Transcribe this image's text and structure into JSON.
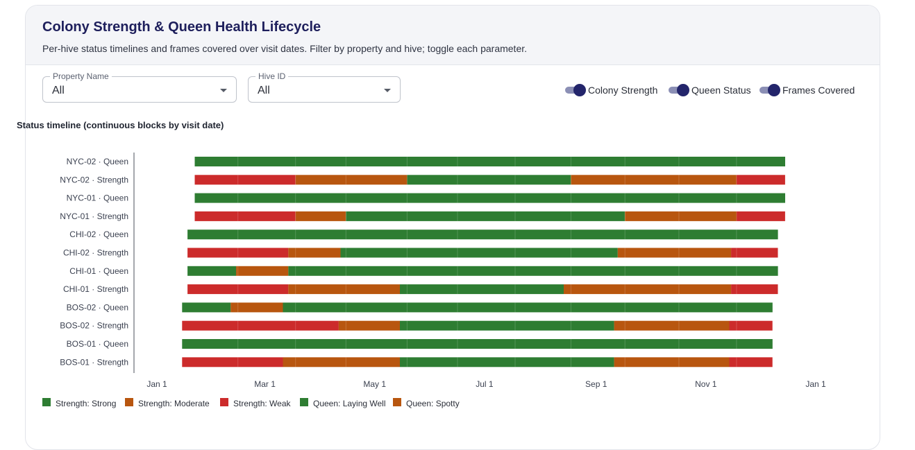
{
  "header": {
    "title": "Colony Strength & Queen Health Lifecycle",
    "subtitle": "Per-hive status timelines and frames covered over visit dates. Filter by property and hive; toggle each parameter."
  },
  "filters": {
    "property": {
      "label": "Property Name",
      "value": "All"
    },
    "hive": {
      "label": "Hive ID",
      "value": "All"
    }
  },
  "toggles": [
    {
      "label": "Colony Strength",
      "on": true
    },
    {
      "label": "Queen Status",
      "on": true
    },
    {
      "label": "Frames Covered",
      "on": true
    }
  ],
  "section_title": "Status timeline (continuous blocks by visit date)",
  "colors": {
    "strong": "#2e7d32",
    "moderate": "#b8560f",
    "weak": "#cc2b2b",
    "accent": "#1e1f5c"
  },
  "chart_data": {
    "type": "timeline",
    "x_ticks": [
      "Jan 1",
      "Mar 1",
      "May 1",
      "Jul 1",
      "Sep 1",
      "Nov 1",
      "Jan 1"
    ],
    "legend": [
      {
        "label": "Strength: Strong",
        "color": "#2e7d32"
      },
      {
        "label": "Strength: Moderate",
        "color": "#b8560f"
      },
      {
        "label": "Strength: Weak",
        "color": "#cc2b2b"
      },
      {
        "label": "Queen: Laying Well",
        "color": "#2e7d32"
      },
      {
        "label": "Queen: Spotty",
        "color": "#b8560f"
      }
    ],
    "rows": [
      {
        "label": "NYC-02 · Queen",
        "segments": [
          {
            "start": "2024-01-22",
            "end": "2024-12-15",
            "status": "strong"
          }
        ]
      },
      {
        "label": "NYC-02 · Strength",
        "segments": [
          {
            "start": "2024-01-22",
            "end": "2024-03-18",
            "status": "weak"
          },
          {
            "start": "2024-03-18",
            "end": "2024-05-19",
            "status": "moderate"
          },
          {
            "start": "2024-05-19",
            "end": "2024-08-18",
            "status": "strong"
          },
          {
            "start": "2024-08-18",
            "end": "2024-11-18",
            "status": "moderate"
          },
          {
            "start": "2024-11-18",
            "end": "2024-12-15",
            "status": "weak"
          }
        ]
      },
      {
        "label": "NYC-01 · Queen",
        "segments": [
          {
            "start": "2024-01-22",
            "end": "2024-12-15",
            "status": "strong"
          }
        ]
      },
      {
        "label": "NYC-01 · Strength",
        "segments": [
          {
            "start": "2024-01-22",
            "end": "2024-03-18",
            "status": "weak"
          },
          {
            "start": "2024-03-18",
            "end": "2024-04-15",
            "status": "moderate"
          },
          {
            "start": "2024-04-15",
            "end": "2024-09-17",
            "status": "strong"
          },
          {
            "start": "2024-09-17",
            "end": "2024-11-18",
            "status": "moderate"
          },
          {
            "start": "2024-11-18",
            "end": "2024-12-15",
            "status": "weak"
          }
        ]
      },
      {
        "label": "CHI-02 · Queen",
        "segments": [
          {
            "start": "2024-01-18",
            "end": "2024-12-11",
            "status": "strong"
          }
        ]
      },
      {
        "label": "CHI-02 · Strength",
        "segments": [
          {
            "start": "2024-01-18",
            "end": "2024-03-14",
            "status": "weak"
          },
          {
            "start": "2024-03-14",
            "end": "2024-04-12",
            "status": "moderate"
          },
          {
            "start": "2024-04-12",
            "end": "2024-09-13",
            "status": "strong"
          },
          {
            "start": "2024-09-13",
            "end": "2024-11-15",
            "status": "moderate"
          },
          {
            "start": "2024-11-15",
            "end": "2024-12-11",
            "status": "weak"
          }
        ]
      },
      {
        "label": "CHI-01 · Queen",
        "segments": [
          {
            "start": "2024-01-18",
            "end": "2024-02-14",
            "status": "strong"
          },
          {
            "start": "2024-02-14",
            "end": "2024-03-14",
            "status": "moderate"
          },
          {
            "start": "2024-03-14",
            "end": "2024-12-11",
            "status": "strong"
          }
        ]
      },
      {
        "label": "CHI-01 · Strength",
        "segments": [
          {
            "start": "2024-01-18",
            "end": "2024-03-14",
            "status": "weak"
          },
          {
            "start": "2024-03-14",
            "end": "2024-05-15",
            "status": "moderate"
          },
          {
            "start": "2024-05-15",
            "end": "2024-08-14",
            "status": "strong"
          },
          {
            "start": "2024-08-14",
            "end": "2024-11-15",
            "status": "moderate"
          },
          {
            "start": "2024-11-15",
            "end": "2024-12-11",
            "status": "weak"
          }
        ]
      },
      {
        "label": "BOS-02 · Queen",
        "segments": [
          {
            "start": "2024-01-15",
            "end": "2024-02-11",
            "status": "strong"
          },
          {
            "start": "2024-02-11",
            "end": "2024-03-11",
            "status": "moderate"
          },
          {
            "start": "2024-03-11",
            "end": "2024-12-08",
            "status": "strong"
          }
        ]
      },
      {
        "label": "BOS-02 · Strength",
        "segments": [
          {
            "start": "2024-01-15",
            "end": "2024-04-11",
            "status": "weak"
          },
          {
            "start": "2024-04-11",
            "end": "2024-05-15",
            "status": "moderate"
          },
          {
            "start": "2024-05-15",
            "end": "2024-09-11",
            "status": "strong"
          },
          {
            "start": "2024-09-11",
            "end": "2024-11-14",
            "status": "moderate"
          },
          {
            "start": "2024-11-14",
            "end": "2024-12-08",
            "status": "weak"
          }
        ]
      },
      {
        "label": "BOS-01 · Queen",
        "segments": [
          {
            "start": "2024-01-15",
            "end": "2024-12-08",
            "status": "strong"
          }
        ]
      },
      {
        "label": "BOS-01 · Strength",
        "segments": [
          {
            "start": "2024-01-15",
            "end": "2024-03-11",
            "status": "weak"
          },
          {
            "start": "2024-03-11",
            "end": "2024-05-15",
            "status": "moderate"
          },
          {
            "start": "2024-05-15",
            "end": "2024-09-11",
            "status": "strong"
          },
          {
            "start": "2024-09-11",
            "end": "2024-11-14",
            "status": "moderate"
          },
          {
            "start": "2024-11-14",
            "end": "2024-12-08",
            "status": "weak"
          }
        ]
      }
    ]
  }
}
